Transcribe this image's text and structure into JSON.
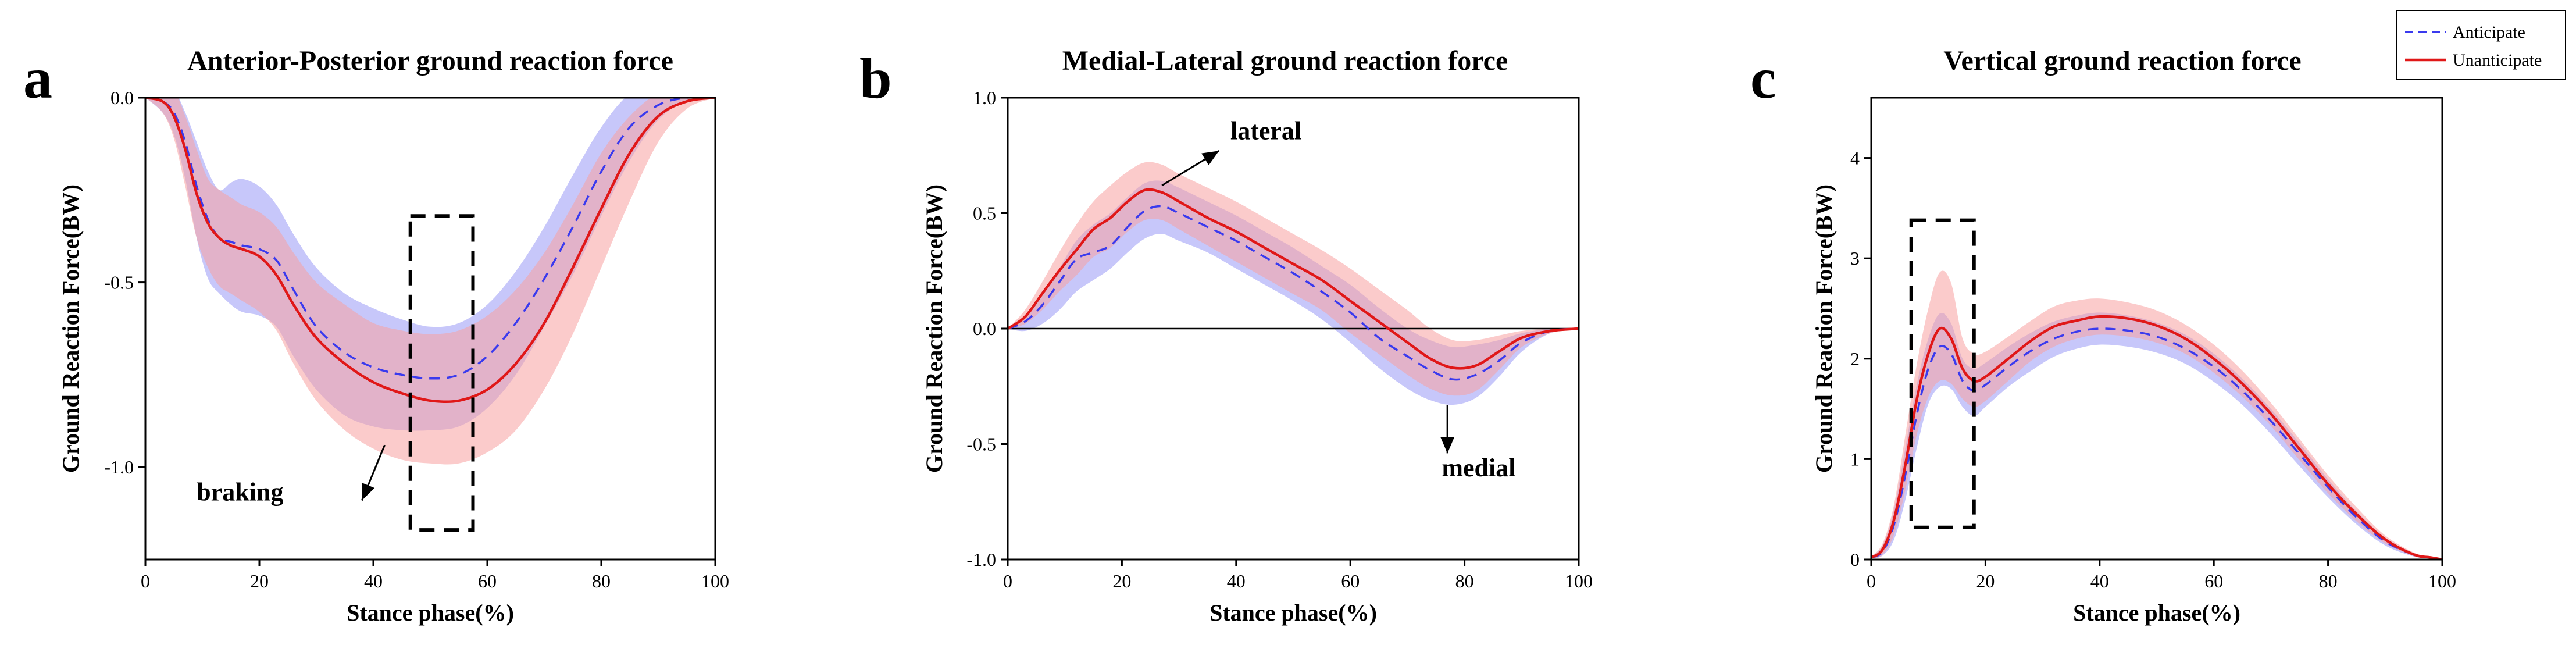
{
  "chart_data": [
    {
      "type": "line",
      "letter": "a",
      "title": "Anterior-Posterior  ground reaction force",
      "xlabel": "Stance phase(%)",
      "ylabel": "Ground Reaction Force(BW)",
      "xlim": [
        0,
        100
      ],
      "ylim": [
        -1.25,
        0
      ],
      "xticks": [
        0,
        20,
        40,
        60,
        80,
        100
      ],
      "xtick_labels": [
        "0",
        "20",
        "40",
        "60",
        "80",
        "100"
      ],
      "yticks": [
        0,
        -0.5,
        -1.0
      ],
      "ytick_labels": [
        "0.0",
        "-0.5",
        "-1.0"
      ],
      "zero_line": false,
      "x": [
        0,
        3,
        5,
        7,
        9,
        11,
        13,
        15,
        17,
        20,
        23,
        26,
        30,
        35,
        40,
        45,
        50,
        55,
        60,
        65,
        70,
        75,
        80,
        85,
        90,
        95,
        100
      ],
      "series": [
        {
          "name": "Anticipate",
          "style": "dashed",
          "values": [
            0,
            -0.01,
            -0.04,
            -0.12,
            -0.24,
            -0.33,
            -0.38,
            -0.39,
            -0.4,
            -0.41,
            -0.44,
            -0.52,
            -0.62,
            -0.69,
            -0.73,
            -0.75,
            -0.76,
            -0.75,
            -0.7,
            -0.61,
            -0.49,
            -0.35,
            -0.2,
            -0.08,
            -0.02,
            0,
            0
          ],
          "sd_upper": [
            0,
            0.01,
            0.02,
            -0.04,
            -0.12,
            -0.2,
            -0.25,
            -0.23,
            -0.22,
            -0.24,
            -0.29,
            -0.37,
            -0.46,
            -0.53,
            -0.57,
            -0.6,
            -0.62,
            -0.61,
            -0.56,
            -0.47,
            -0.35,
            -0.21,
            -0.08,
            0.01,
            0.03,
            0.01,
            0
          ],
          "sd_lower": [
            0,
            -0.04,
            -0.1,
            -0.22,
            -0.38,
            -0.49,
            -0.53,
            -0.56,
            -0.58,
            -0.59,
            -0.62,
            -0.7,
            -0.79,
            -0.86,
            -0.89,
            -0.9,
            -0.9,
            -0.89,
            -0.84,
            -0.75,
            -0.62,
            -0.48,
            -0.32,
            -0.17,
            -0.06,
            -0.01,
            0
          ]
        },
        {
          "name": "Unanticipate",
          "style": "solid",
          "values": [
            0,
            -0.01,
            -0.05,
            -0.14,
            -0.26,
            -0.34,
            -0.38,
            -0.4,
            -0.41,
            -0.43,
            -0.48,
            -0.56,
            -0.65,
            -0.72,
            -0.77,
            -0.8,
            -0.82,
            -0.82,
            -0.79,
            -0.72,
            -0.61,
            -0.46,
            -0.3,
            -0.15,
            -0.05,
            -0.01,
            0
          ],
          "sd_upper": [
            0,
            0.01,
            0.02,
            -0.05,
            -0.14,
            -0.22,
            -0.25,
            -0.27,
            -0.29,
            -0.31,
            -0.35,
            -0.42,
            -0.5,
            -0.56,
            -0.61,
            -0.63,
            -0.64,
            -0.63,
            -0.59,
            -0.52,
            -0.42,
            -0.29,
            -0.15,
            -0.05,
            0.01,
            0.01,
            0
          ],
          "sd_lower": [
            0,
            -0.04,
            -0.11,
            -0.24,
            -0.38,
            -0.46,
            -0.51,
            -0.53,
            -0.55,
            -0.58,
            -0.63,
            -0.72,
            -0.82,
            -0.9,
            -0.95,
            -0.98,
            -0.99,
            -0.99,
            -0.96,
            -0.9,
            -0.79,
            -0.64,
            -0.46,
            -0.28,
            -0.12,
            -0.03,
            0
          ]
        }
      ],
      "highlight_box": {
        "x": [
          46.5,
          57.5
        ],
        "y": [
          -1.17,
          -0.32
        ]
      },
      "annotations": [
        {
          "text": "braking",
          "at": [
            9,
            -1.09
          ],
          "arrow_from": [
            42,
            -0.94
          ],
          "arrow_to": [
            38,
            -1.09
          ]
        }
      ]
    },
    {
      "type": "line",
      "letter": "b",
      "title": "Medial-Lateral  ground reaction force",
      "xlabel": "Stance phase(%)",
      "ylabel": "Ground Reaction Force(BW)",
      "xlim": [
        0,
        100
      ],
      "ylim": [
        -1.0,
        1.0
      ],
      "xticks": [
        0,
        20,
        40,
        60,
        80,
        100
      ],
      "xtick_labels": [
        "0",
        "20",
        "40",
        "60",
        "80",
        "100"
      ],
      "yticks": [
        1.0,
        0.5,
        0,
        -0.5,
        -1.0
      ],
      "ytick_labels": [
        "1.0",
        "0.5",
        "0.0",
        "-0.5",
        "-1.0"
      ],
      "zero_line": true,
      "x": [
        0,
        3,
        6,
        9,
        12,
        15,
        18,
        21,
        24,
        27,
        30,
        35,
        40,
        45,
        50,
        55,
        60,
        65,
        70,
        74,
        78,
        82,
        86,
        90,
        95,
        100
      ],
      "series": [
        {
          "name": "Anticipate",
          "style": "dashed",
          "values": [
            0,
            0.03,
            0.1,
            0.2,
            0.3,
            0.33,
            0.36,
            0.44,
            0.51,
            0.53,
            0.5,
            0.44,
            0.38,
            0.31,
            0.24,
            0.16,
            0.07,
            -0.04,
            -0.12,
            -0.18,
            -0.22,
            -0.2,
            -0.14,
            -0.06,
            -0.01,
            0
          ],
          "sd_upper": [
            0,
            0.05,
            0.14,
            0.26,
            0.38,
            0.45,
            0.5,
            0.57,
            0.63,
            0.64,
            0.61,
            0.55,
            0.49,
            0.42,
            0.35,
            0.27,
            0.19,
            0.09,
            0.0,
            -0.05,
            -0.08,
            -0.07,
            -0.05,
            -0.02,
            0,
            0
          ],
          "sd_lower": [
            0,
            -0.01,
            0.02,
            0.08,
            0.16,
            0.21,
            0.26,
            0.33,
            0.39,
            0.41,
            0.38,
            0.33,
            0.26,
            0.19,
            0.12,
            0.04,
            -0.06,
            -0.17,
            -0.26,
            -0.31,
            -0.33,
            -0.3,
            -0.21,
            -0.1,
            -0.02,
            0
          ]
        },
        {
          "name": "Unanticipate",
          "style": "solid",
          "values": [
            0,
            0.05,
            0.15,
            0.25,
            0.34,
            0.43,
            0.48,
            0.55,
            0.6,
            0.59,
            0.55,
            0.48,
            0.42,
            0.35,
            0.28,
            0.21,
            0.12,
            0.03,
            -0.06,
            -0.13,
            -0.17,
            -0.16,
            -0.1,
            -0.04,
            -0.01,
            0
          ],
          "sd_upper": [
            0,
            0.08,
            0.2,
            0.33,
            0.45,
            0.55,
            0.62,
            0.68,
            0.72,
            0.71,
            0.67,
            0.61,
            0.55,
            0.48,
            0.41,
            0.34,
            0.26,
            0.17,
            0.08,
            0.0,
            -0.05,
            -0.05,
            -0.03,
            -0.01,
            0,
            0
          ],
          "sd_lower": [
            0,
            0.02,
            0.08,
            0.16,
            0.23,
            0.31,
            0.35,
            0.42,
            0.47,
            0.47,
            0.43,
            0.36,
            0.29,
            0.22,
            0.15,
            0.08,
            -0.02,
            -0.11,
            -0.2,
            -0.26,
            -0.29,
            -0.27,
            -0.18,
            -0.08,
            -0.02,
            0
          ]
        }
      ],
      "annotations": [
        {
          "text": "lateral",
          "at": [
            39,
            0.82
          ],
          "arrow_from": [
            27,
            0.62
          ],
          "arrow_to": [
            37,
            0.77
          ]
        },
        {
          "text": "medial",
          "at": [
            76,
            -0.64
          ],
          "arrow_from": [
            77,
            -0.33
          ],
          "arrow_to": [
            77,
            -0.54
          ]
        }
      ]
    },
    {
      "type": "line",
      "letter": "c",
      "title": "Vertical  ground reaction force",
      "xlabel": "Stance phase(%)",
      "ylabel": "Ground Reaction Force(BW)",
      "xlim": [
        0,
        100
      ],
      "ylim": [
        0,
        4.6
      ],
      "xticks": [
        0,
        20,
        40,
        60,
        80,
        100
      ],
      "xtick_labels": [
        "0",
        "20",
        "40",
        "60",
        "80",
        "100"
      ],
      "yticks": [
        0,
        1,
        2,
        3,
        4
      ],
      "ytick_labels": [
        "0",
        "1",
        "2",
        "3",
        "4"
      ],
      "zero_line": false,
      "x": [
        0,
        2,
        4,
        6,
        8,
        10,
        12,
        14,
        16,
        18,
        20,
        24,
        28,
        32,
        36,
        40,
        45,
        50,
        55,
        60,
        65,
        70,
        75,
        80,
        85,
        90,
        95,
        98,
        100
      ],
      "series": [
        {
          "name": "Anticipate",
          "style": "dashed",
          "values": [
            0.02,
            0.08,
            0.35,
            0.85,
            1.45,
            1.9,
            2.12,
            2.05,
            1.78,
            1.68,
            1.74,
            1.92,
            2.08,
            2.2,
            2.27,
            2.3,
            2.28,
            2.22,
            2.1,
            1.92,
            1.68,
            1.38,
            1.05,
            0.72,
            0.42,
            0.18,
            0.05,
            0.02,
            0
          ],
          "sd_upper": [
            0.03,
            0.14,
            0.5,
            1.12,
            1.75,
            2.2,
            2.45,
            2.35,
            2.0,
            1.9,
            1.96,
            2.12,
            2.26,
            2.37,
            2.43,
            2.46,
            2.43,
            2.36,
            2.24,
            2.05,
            1.8,
            1.5,
            1.16,
            0.8,
            0.48,
            0.22,
            0.06,
            0.02,
            0
          ],
          "sd_lower": [
            0.01,
            0.04,
            0.2,
            0.6,
            1.12,
            1.55,
            1.72,
            1.7,
            1.52,
            1.43,
            1.52,
            1.72,
            1.88,
            2.02,
            2.1,
            2.14,
            2.12,
            2.06,
            1.95,
            1.77,
            1.54,
            1.25,
            0.93,
            0.62,
            0.35,
            0.14,
            0.03,
            0.01,
            0
          ]
        },
        {
          "name": "Unanticipate",
          "style": "solid",
          "values": [
            0.02,
            0.1,
            0.4,
            0.95,
            1.6,
            2.05,
            2.3,
            2.2,
            1.9,
            1.78,
            1.82,
            2.0,
            2.18,
            2.32,
            2.38,
            2.42,
            2.4,
            2.33,
            2.2,
            2.0,
            1.75,
            1.45,
            1.1,
            0.75,
            0.45,
            0.2,
            0.05,
            0.02,
            0
          ],
          "sd_upper": [
            0.03,
            0.16,
            0.55,
            1.25,
            1.95,
            2.5,
            2.86,
            2.75,
            2.2,
            2.05,
            2.07,
            2.22,
            2.38,
            2.52,
            2.58,
            2.6,
            2.56,
            2.48,
            2.34,
            2.14,
            1.88,
            1.56,
            1.2,
            0.84,
            0.52,
            0.24,
            0.07,
            0.02,
            0
          ],
          "sd_lower": [
            0.01,
            0.05,
            0.25,
            0.7,
            1.25,
            1.62,
            1.78,
            1.75,
            1.6,
            1.52,
            1.58,
            1.78,
            1.98,
            2.12,
            2.2,
            2.24,
            2.22,
            2.16,
            2.05,
            1.86,
            1.62,
            1.33,
            0.99,
            0.66,
            0.38,
            0.16,
            0.04,
            0.01,
            0
          ]
        }
      ],
      "highlight_box": {
        "x": [
          7,
          18
        ],
        "y": [
          0.32,
          3.38
        ]
      }
    }
  ],
  "legend": {
    "position": "top-right",
    "items": [
      {
        "name": "Anticipate",
        "style": "dashed"
      },
      {
        "name": "Unanticipate",
        "style": "solid"
      }
    ]
  },
  "colors": {
    "anticipate_line": "#3a3aee",
    "anticipate_band": "#9999f5",
    "unanticipate_line": "#e01818",
    "unanticipate_band": "#f8a0a0",
    "axis": "#000000"
  }
}
